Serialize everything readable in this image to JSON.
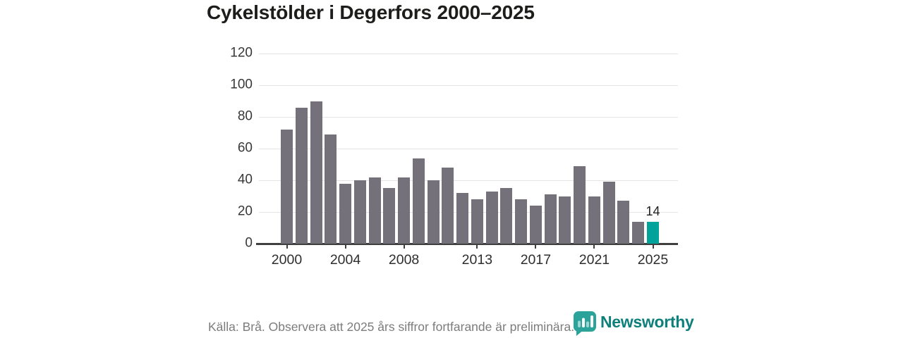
{
  "title": "Cykelstölder i Degerfors 2000–2025",
  "footer": {
    "source_note": "Källa: Brå. Observera att 2025 års siffror fortfarande är preliminära.",
    "brand_name": "Newsworthy"
  },
  "chart_data": {
    "type": "bar",
    "title": "Cykelstölder i Degerfors 2000–2025",
    "categories": [
      2000,
      2001,
      2002,
      2003,
      2004,
      2005,
      2006,
      2007,
      2008,
      2009,
      2010,
      2011,
      2012,
      2013,
      2014,
      2015,
      2016,
      2017,
      2018,
      2019,
      2020,
      2021,
      2022,
      2023,
      2024,
      2025
    ],
    "values": [
      72,
      86,
      90,
      69,
      38,
      40,
      42,
      35,
      42,
      54,
      40,
      48,
      32,
      28,
      33,
      35,
      28,
      24,
      31,
      30,
      49,
      30,
      39,
      27,
      14,
      14
    ],
    "xlabel": "",
    "ylabel": "",
    "ylim": [
      0,
      120
    ],
    "yticks": [
      0,
      20,
      40,
      60,
      80,
      100,
      120
    ],
    "xticks": [
      2000,
      2004,
      2008,
      2013,
      2017,
      2021,
      2025
    ],
    "grid": true,
    "legend_position": "none",
    "highlight_category": 2025,
    "value_labels": [
      {
        "category": 2025,
        "text": "14"
      }
    ],
    "colors": {
      "bar": "#75717a",
      "highlight": "#00a39a",
      "grid": "#e4e4e4",
      "axis": "#3f3f3f",
      "tick_text": "#2e2e2e"
    }
  }
}
